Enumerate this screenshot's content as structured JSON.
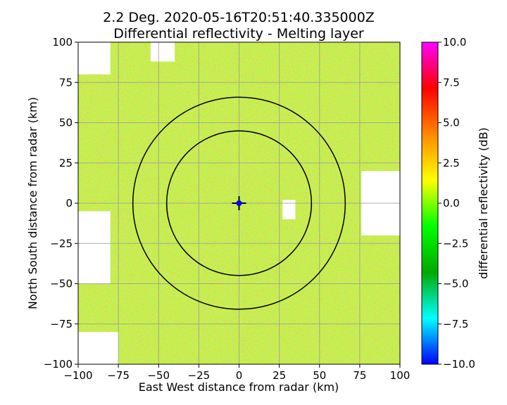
{
  "chart_data": {
    "type": "heatmap",
    "title_line1": "2.2 Deg. 2020-05-16T20:51:40.335000Z",
    "title_line2": "Differential reflectivity - Melting layer",
    "xlabel": "East West distance from radar (km)",
    "ylabel": "North South distance from radar (km)",
    "xlim": [
      -100,
      100
    ],
    "ylim": [
      -100,
      100
    ],
    "x_ticks": [
      -100,
      -75,
      -50,
      -25,
      0,
      25,
      50,
      75,
      100
    ],
    "y_ticks": [
      -100,
      -75,
      -50,
      -25,
      0,
      25,
      50,
      75,
      100
    ],
    "x_tick_labels": [
      "−100",
      "−75",
      "−50",
      "−25",
      "0",
      "25",
      "50",
      "75",
      "100"
    ],
    "y_tick_labels": [
      "−100",
      "−75",
      "−50",
      "−25",
      "0",
      "25",
      "50",
      "75",
      "100"
    ],
    "grid": true,
    "colorbar": {
      "label": "differential reflectivity (dB)",
      "range": [
        -10.0,
        10.0
      ],
      "ticks": [
        -10.0,
        -7.5,
        -5.0,
        -2.5,
        0.0,
        2.5,
        5.0,
        7.5,
        10.0
      ],
      "tick_labels": [
        "−10.0",
        "−7.5",
        "−5.0",
        "−2.5",
        "0.0",
        "2.5",
        "5.0",
        "7.5",
        "10.0"
      ],
      "colors": [
        "#0000ff",
        "#00ffff",
        "#00aa00",
        "#00ff00",
        "#ffff00",
        "#ff8800",
        "#ff0000",
        "#ff00ff"
      ]
    },
    "range_rings_km": [
      45,
      66
    ],
    "radar_location_km": [
      0,
      0
    ],
    "field_colors": {
      "dominant": "#c8ff20",
      "secondary": "#ffff40",
      "accent": "#ffaa20",
      "green": "#60ff40",
      "no_data": "#ffffff"
    },
    "no_data_regions": [
      {
        "name": "no-data-top-left",
        "x": [
          -100,
          -80
        ],
        "y": [
          80,
          100
        ]
      },
      {
        "name": "no-data-top-edge",
        "x": [
          -55,
          -40
        ],
        "y": [
          88,
          100
        ]
      },
      {
        "name": "no-data-right-gap",
        "x": [
          76,
          100
        ],
        "y": [
          -20,
          20
        ]
      },
      {
        "name": "no-data-left-gap",
        "x": [
          -100,
          -80
        ],
        "y": [
          -50,
          -5
        ]
      },
      {
        "name": "no-data-bottom-left",
        "x": [
          -100,
          -75
        ],
        "y": [
          -100,
          -80
        ]
      },
      {
        "name": "no-data-mid-right",
        "x": [
          27,
          35
        ],
        "y": [
          -10,
          2
        ]
      }
    ]
  }
}
